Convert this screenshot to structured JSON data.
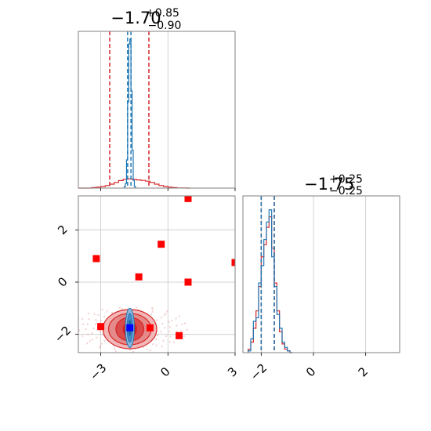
{
  "chart_data": [
    {
      "type": "histogram",
      "panel": "top-left",
      "title_main": "−1.70",
      "title_sup": "+0.85",
      "title_sub": "−0.90",
      "xlim": [
        -4.0,
        3.0
      ],
      "x_ticks": [
        -3,
        0,
        3
      ],
      "series": [
        {
          "name": "",
          "color": "#d62728",
          "bin_edges": [
            -4.0,
            -3.8,
            -3.6,
            -3.4,
            -3.2,
            -3.0,
            -2.8,
            -2.6,
            -2.4,
            -2.2,
            -2.0,
            -1.8,
            -1.6,
            -1.4,
            -1.2,
            -1.0,
            -0.8,
            -0.6,
            -0.4,
            -0.2,
            0.0,
            0.2,
            0.4,
            0.6,
            0.8,
            1.0
          ],
          "counts": [
            0,
            0,
            0,
            0.3,
            0.6,
            1.0,
            1.6,
            2.5,
            3.6,
            4.8,
            5.6,
            5.8,
            5.5,
            5.2,
            4.9,
            4.4,
            3.6,
            2.5,
            1.6,
            1.0,
            0.6,
            0.3,
            0.1,
            0.05,
            0
          ]
        },
        {
          "name": "",
          "color": "#1f77b4",
          "bin_edges": [
            -1.95,
            -1.9,
            -1.85,
            -1.8,
            -1.75,
            -1.7,
            -1.65,
            -1.6,
            -1.55,
            -1.5,
            -1.45
          ],
          "counts": [
            1,
            3,
            18,
            55,
            92,
            95,
            62,
            24,
            5,
            1
          ]
        }
      ],
      "ymax": 100,
      "vlines": [
        {
          "x": -2.6,
          "color": "#d62728"
        },
        {
          "x": -0.85,
          "color": "#d62728"
        },
        {
          "x": -1.8,
          "color": "#1f77b4"
        },
        {
          "x": -1.65,
          "color": "#1f77b4"
        }
      ]
    },
    {
      "type": "histogram",
      "panel": "bottom-right",
      "title_main": "−1.75",
      "title_sup": "+0.25",
      "title_sub": "−0.25",
      "xlim": [
        -2.7,
        3.3
      ],
      "x_ticks": [
        -2,
        0,
        2
      ],
      "series": [
        {
          "name": "",
          "color": "#d62728",
          "bin_edges": [
            -2.5,
            -2.4,
            -2.3,
            -2.2,
            -2.1,
            -2.0,
            -1.9,
            -1.8,
            -1.7,
            -1.6,
            -1.5,
            -1.4,
            -1.3,
            -1.2,
            -1.1,
            -1.0,
            -0.9,
            -0.8
          ],
          "counts": [
            2,
            6,
            14,
            24,
            38,
            55,
            62,
            72,
            78,
            60,
            40,
            24,
            12,
            5,
            2,
            1,
            0
          ]
        },
        {
          "name": "",
          "color": "#1f77b4",
          "bin_edges": [
            -2.5,
            -2.4,
            -2.3,
            -2.2,
            -2.1,
            -2.0,
            -1.9,
            -1.8,
            -1.7,
            -1.6,
            -1.5,
            -1.4,
            -1.3,
            -1.2,
            -1.1,
            -1.0,
            -0.9,
            -0.8
          ],
          "counts": [
            1,
            8,
            18,
            20,
            40,
            50,
            65,
            75,
            82,
            55,
            38,
            22,
            14,
            6,
            3,
            1,
            0
          ]
        }
      ],
      "ymax": 90,
      "vlines": [
        {
          "x": -2.0,
          "color": "#d62728"
        },
        {
          "x": -1.5,
          "color": "#d62728"
        },
        {
          "x": -2.0,
          "color": "#1f77b4"
        },
        {
          "x": -1.5,
          "color": "#1f77b4"
        }
      ]
    },
    {
      "type": "scatter",
      "panel": "bottom-left",
      "xlim": [
        -4.0,
        3.0
      ],
      "ylim": [
        -2.7,
        3.3
      ],
      "x_ticks": [
        -3,
        0,
        3
      ],
      "y_ticks": [
        -2,
        0,
        2
      ],
      "red_points": [
        {
          "x": 0.9,
          "y": 3.2
        },
        {
          "x": -0.3,
          "y": 1.45
        },
        {
          "x": -3.2,
          "y": 0.9
        },
        {
          "x": 3.0,
          "y": 0.75
        },
        {
          "x": -1.3,
          "y": 0.2
        },
        {
          "x": 0.9,
          "y": 0.0
        },
        {
          "x": -3.0,
          "y": -1.7
        },
        {
          "x": -0.8,
          "y": -1.75
        },
        {
          "x": 0.5,
          "y": -2.05
        }
      ],
      "blue_point": {
        "x": -1.7,
        "y": -1.75
      },
      "contours": [
        {
          "cx": -1.7,
          "cy": -1.8,
          "rx": 2.4,
          "ry": 0.75,
          "color": "#f2b8b8"
        },
        {
          "cx": -1.7,
          "cy": -1.8,
          "rx": 1.9,
          "ry": 0.6,
          "color": "#e58a8a"
        },
        {
          "cx": -1.7,
          "cy": -1.8,
          "rx": 1.25,
          "ry": 0.45,
          "color": "#d94a4a"
        },
        {
          "cx": -1.7,
          "cy": -1.8,
          "rx": 0.6,
          "ry": 0.3,
          "color": "#c42020"
        }
      ],
      "blue_contours": [
        {
          "cx": -1.7,
          "cy": -1.75,
          "rx": 0.2,
          "ry": 0.75,
          "color": "#8fb6d9"
        },
        {
          "cx": -1.7,
          "cy": -1.75,
          "rx": 0.12,
          "ry": 0.55,
          "color": "#4b8cc4"
        },
        {
          "cx": -1.7,
          "cy": -1.75,
          "rx": 0.06,
          "ry": 0.3,
          "color": "#1f5fa0"
        }
      ],
      "colors": {
        "red": "#ff0000",
        "blue": "#0000ff",
        "grid": "#c8c8c8"
      }
    }
  ]
}
